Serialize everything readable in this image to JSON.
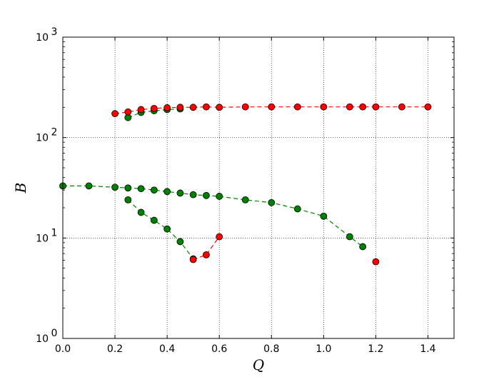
{
  "chart_data": {
    "type": "scatter",
    "title": "",
    "xlabel": "Q",
    "ylabel": "B",
    "xlim": [
      0.0,
      1.5
    ],
    "ylim": [
      1,
      1000
    ],
    "y_scale": "log",
    "grid": true,
    "legend": "none",
    "x_ticks": [
      "0.0",
      "0.2",
      "0.4",
      "0.6",
      "0.8",
      "1.0",
      "1.2",
      "1.4"
    ],
    "x_tick_values": [
      0.0,
      0.2,
      0.4,
      0.6,
      0.8,
      1.0,
      1.2,
      1.4
    ],
    "y_tick_values": [
      1,
      10,
      100,
      1000
    ],
    "y_ticks": [
      {
        "base": "10",
        "exp": "0"
      },
      {
        "base": "10",
        "exp": "1"
      },
      {
        "base": "10",
        "exp": "2"
      },
      {
        "base": "10",
        "exp": "3"
      }
    ],
    "series": [
      {
        "color": "#008000",
        "points": [
          [
            0.25,
            158
          ],
          [
            0.3,
            178
          ],
          [
            0.35,
            185
          ],
          [
            0.4,
            190
          ],
          [
            0.45,
            193
          ]
        ]
      },
      {
        "color": "#ff0000",
        "points": [
          [
            0.2,
            173
          ],
          [
            0.25,
            180
          ],
          [
            0.3,
            190
          ],
          [
            0.35,
            195
          ],
          [
            0.4,
            198
          ],
          [
            0.45,
            200
          ],
          [
            0.5,
            200
          ],
          [
            0.55,
            202
          ],
          [
            0.6,
            200
          ],
          [
            0.7,
            202
          ],
          [
            0.8,
            202
          ],
          [
            0.9,
            202
          ],
          [
            1.0,
            202
          ],
          [
            1.1,
            202
          ],
          [
            1.15,
            202
          ],
          [
            1.2,
            202
          ],
          [
            1.3,
            202
          ],
          [
            1.4,
            202
          ]
        ]
      },
      {
        "color": "#008000",
        "points": [
          [
            0.0,
            33
          ],
          [
            0.1,
            33
          ],
          [
            0.2,
            32
          ],
          [
            0.25,
            31.5
          ],
          [
            0.3,
            31
          ],
          [
            0.35,
            30
          ],
          [
            0.4,
            29
          ],
          [
            0.45,
            28
          ],
          [
            0.5,
            27
          ],
          [
            0.55,
            26.5
          ],
          [
            0.6,
            26
          ],
          [
            0.7,
            24
          ],
          [
            0.8,
            22.5
          ],
          [
            0.9,
            19.5
          ],
          [
            1.0,
            16.5
          ],
          [
            1.1,
            10.3
          ],
          [
            1.15,
            8.2
          ]
        ]
      },
      {
        "color": "#008000",
        "points": [
          [
            0.25,
            24
          ],
          [
            0.3,
            18
          ],
          [
            0.35,
            15
          ],
          [
            0.4,
            12.3
          ],
          [
            0.45,
            9.2
          ],
          [
            0.5,
            6.2
          ]
        ]
      },
      {
        "color": "#ff0000",
        "points": [
          [
            0.5,
            6.1
          ],
          [
            0.55,
            6.8
          ],
          [
            0.6,
            10.3
          ]
        ]
      },
      {
        "color": "#ff0000",
        "points": [
          [
            1.2,
            5.8
          ]
        ]
      }
    ]
  }
}
